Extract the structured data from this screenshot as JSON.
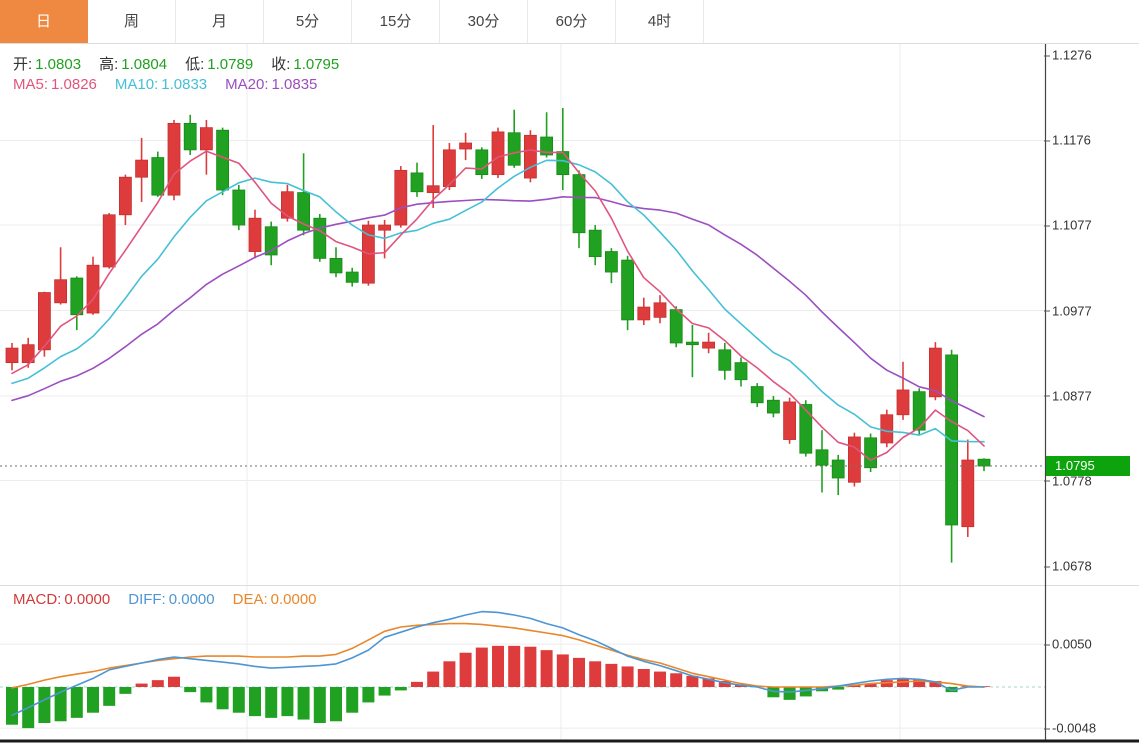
{
  "tabs": {
    "active_index": 0,
    "items": [
      "日",
      "周",
      "月",
      "5分",
      "15分",
      "30分",
      "60分",
      "4时"
    ]
  },
  "legend": {
    "ohlc": [
      {
        "label": "开:",
        "value": "1.0803"
      },
      {
        "label": "高:",
        "value": "1.0804"
      },
      {
        "label": "低:",
        "value": "1.0789"
      },
      {
        "label": "收:",
        "value": "1.0795"
      }
    ],
    "ma": [
      {
        "label": "MA5:",
        "value": "1.0826",
        "color": "#e0557e"
      },
      {
        "label": "MA10:",
        "value": "1.0833",
        "color": "#45c0d6"
      },
      {
        "label": "MA20:",
        "value": "1.0835",
        "color": "#9b4fc0"
      }
    ],
    "macd": [
      {
        "label": "MACD:",
        "value": "0.0000",
        "color": "#d43a3a"
      },
      {
        "label": "DIFF:",
        "value": "0.0000",
        "color": "#4e96d3"
      },
      {
        "label": "DEA:",
        "value": "0.0000",
        "color": "#e8872c"
      }
    ]
  },
  "price_axis": {
    "ticks": [
      "1.1276",
      "1.1176",
      "1.1077",
      "1.0977",
      "1.0877",
      "1.0778",
      "1.0678"
    ],
    "badge": {
      "label": "1.0795"
    }
  },
  "macd_axis": {
    "ticks": [
      "0.0050",
      "-0.0048"
    ]
  },
  "colors": {
    "up": "#de3c3c",
    "up_edge": "#c53030",
    "down": "#21a121",
    "down_edge": "#178a17",
    "ma5": "#e0557e",
    "ma10": "#45c0d6",
    "ma20": "#9b4fc0",
    "diff": "#4e96d3",
    "dea": "#e8872c",
    "grid": "#ececec",
    "axis_line": "#444444",
    "tab_active_bg": "#ef8840",
    "badge_bg": "#0da30d",
    "current_line": "#667766",
    "zero_dash": "#a0d6ce",
    "bottom_border": "#1a1a1a"
  },
  "chart_data": {
    "type": "candlestick",
    "x_count": 61,
    "legend_position": "top-left",
    "grid": true,
    "price_panel": {
      "current_price": 1.0795,
      "axis_tick_values": [
        1.1276,
        1.1176,
        1.1077,
        1.0977,
        1.0877,
        1.0778,
        1.0678
      ],
      "ma_periods": [
        5,
        10,
        20
      ],
      "ma_seed_closes": [
        1.0828,
        1.0834,
        1.084,
        1.0846,
        1.0852,
        1.0856,
        1.086,
        1.0864,
        1.0868,
        1.0872,
        1.0876,
        1.0878,
        1.088,
        1.0882,
        1.0884,
        1.0886,
        1.089,
        1.0896,
        1.0912
      ],
      "ohlc": [
        [
          1.0916,
          1.0939,
          1.0907,
          1.0933
        ],
        [
          1.0916,
          1.0945,
          1.091,
          1.0937
        ],
        [
          1.0931,
          1.0999,
          1.0923,
          1.0998
        ],
        [
          1.0986,
          1.1051,
          1.0984,
          1.1013
        ],
        [
          1.1015,
          1.1017,
          1.0954,
          1.0972
        ],
        [
          1.0974,
          1.104,
          1.0972,
          1.103
        ],
        [
          1.1028,
          1.1091,
          1.1026,
          1.1089
        ],
        [
          1.1089,
          1.1136,
          1.1077,
          1.1133
        ],
        [
          1.1133,
          1.1179,
          1.1104,
          1.1153
        ],
        [
          1.1156,
          1.1163,
          1.111,
          1.1112
        ],
        [
          1.1112,
          1.12,
          1.1106,
          1.1196
        ],
        [
          1.1196,
          1.1206,
          1.1159,
          1.1165
        ],
        [
          1.1165,
          1.12,
          1.1136,
          1.1191
        ],
        [
          1.1188,
          1.1191,
          1.1112,
          1.1118
        ],
        [
          1.1118,
          1.1124,
          1.1071,
          1.1077
        ],
        [
          1.1046,
          1.1095,
          1.1038,
          1.1085
        ],
        [
          1.1075,
          1.1081,
          1.103,
          1.1042
        ],
        [
          1.1085,
          1.1124,
          1.1081,
          1.1116
        ],
        [
          1.1115,
          1.1161,
          1.1065,
          1.1071
        ],
        [
          1.1085,
          1.109,
          1.1034,
          1.1038
        ],
        [
          1.1038,
          1.1051,
          1.1016,
          1.1021
        ],
        [
          1.1022,
          1.1027,
          1.1005,
          1.101
        ],
        [
          1.1009,
          1.1082,
          1.1006,
          1.1077
        ],
        [
          1.1071,
          1.1083,
          1.1038,
          1.1077
        ],
        [
          1.1077,
          1.1146,
          1.1074,
          1.1141
        ],
        [
          1.1138,
          1.115,
          1.111,
          1.1116
        ],
        [
          1.1115,
          1.1194,
          1.1097,
          1.1123
        ],
        [
          1.1122,
          1.1173,
          1.1118,
          1.1165
        ],
        [
          1.1166,
          1.1185,
          1.1153,
          1.1173
        ],
        [
          1.1165,
          1.1168,
          1.1131,
          1.1136
        ],
        [
          1.1136,
          1.1191,
          1.1132,
          1.1186
        ],
        [
          1.1185,
          1.1212,
          1.1144,
          1.1147
        ],
        [
          1.1132,
          1.1188,
          1.1127,
          1.1182
        ],
        [
          1.118,
          1.1209,
          1.1156,
          1.1159
        ],
        [
          1.1163,
          1.1214,
          1.1118,
          1.1136
        ],
        [
          1.1136,
          1.1141,
          1.105,
          1.1068
        ],
        [
          1.1071,
          1.1077,
          1.103,
          1.104
        ],
        [
          1.1046,
          1.105,
          1.1009,
          1.1022
        ],
        [
          1.1036,
          1.1041,
          1.0954,
          1.0966
        ],
        [
          1.0966,
          1.0992,
          1.096,
          1.0981
        ],
        [
          1.0969,
          1.0995,
          1.0962,
          1.0986
        ],
        [
          1.0978,
          1.0982,
          1.0934,
          1.0939
        ],
        [
          1.094,
          1.096,
          1.0899,
          1.0937
        ],
        [
          1.0933,
          1.0951,
          1.0927,
          1.094
        ],
        [
          1.0931,
          1.0939,
          1.0896,
          1.0907
        ],
        [
          1.0916,
          1.0922,
          1.0888,
          1.0896
        ],
        [
          1.0888,
          1.0892,
          1.0864,
          1.0869
        ],
        [
          1.0872,
          1.0877,
          1.0852,
          1.0857
        ],
        [
          1.0826,
          1.0875,
          1.0821,
          1.087
        ],
        [
          1.0867,
          1.0872,
          1.0806,
          1.081
        ],
        [
          1.0814,
          1.0837,
          1.0764,
          1.0796
        ],
        [
          1.0802,
          1.0808,
          1.0761,
          1.0781
        ],
        [
          1.0776,
          1.0834,
          1.0771,
          1.0829
        ],
        [
          1.0828,
          1.0833,
          1.0788,
          1.0793
        ],
        [
          1.0822,
          1.0861,
          1.0817,
          1.0855
        ],
        [
          1.0855,
          1.0917,
          1.0849,
          1.0884
        ],
        [
          1.0882,
          1.0886,
          1.0831,
          1.0837
        ],
        [
          1.0876,
          1.094,
          1.0872,
          1.0933
        ],
        [
          1.0925,
          1.0931,
          1.0682,
          1.0726
        ],
        [
          1.0724,
          1.0826,
          1.0712,
          1.0802
        ],
        [
          1.0803,
          1.0804,
          1.0789,
          1.0795
        ]
      ]
    },
    "macd_panel": {
      "unit": 0.0001,
      "axis_tick_values": [
        0.005,
        -0.0048
      ],
      "bars_e4": [
        -44,
        -48,
        -42,
        -40,
        -36,
        -30,
        -22,
        -8,
        4,
        8,
        12,
        -6,
        -18,
        -26,
        -30,
        -34,
        -36,
        -34,
        -38,
        -42,
        -40,
        -30,
        -18,
        -10,
        -4,
        6,
        18,
        30,
        40,
        46,
        48,
        48,
        47,
        43,
        38,
        34,
        30,
        27,
        24,
        21,
        18,
        16,
        13,
        10,
        7,
        3,
        1,
        -12,
        -15,
        -11,
        -5,
        -3,
        2,
        4,
        8,
        10,
        9,
        7,
        -6,
        1,
        0
      ],
      "diff_e4": [
        -33,
        -24,
        -15,
        -6,
        2,
        10,
        20,
        24,
        28,
        32,
        35,
        33,
        31,
        29,
        27,
        24,
        22,
        23,
        24,
        25,
        27,
        34,
        43,
        58,
        64,
        70,
        75,
        79,
        84,
        88,
        87,
        84,
        80,
        74,
        69,
        61,
        54,
        45,
        36,
        30,
        25,
        19,
        13,
        9,
        5,
        2,
        0,
        -5,
        -6,
        -4,
        -2,
        1,
        4,
        7,
        9,
        10,
        9,
        6,
        -4,
        0,
        0
      ],
      "dea_e4": [
        -1,
        3,
        8,
        12,
        15,
        18,
        22,
        25,
        28,
        31,
        33,
        35,
        36,
        36,
        36,
        35,
        35,
        35,
        36,
        36,
        38,
        45,
        55,
        65,
        70,
        72,
        73,
        74,
        74,
        73,
        71,
        69,
        66,
        63,
        60,
        55,
        49,
        43,
        37,
        32,
        28,
        22,
        16,
        12,
        8,
        4,
        1,
        0,
        0,
        0,
        0,
        1,
        2,
        4,
        5,
        6,
        7,
        6,
        4,
        1,
        0
      ]
    }
  }
}
